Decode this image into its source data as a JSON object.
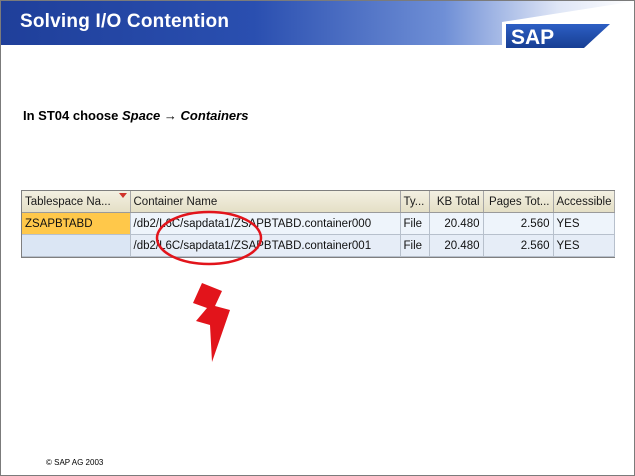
{
  "slide": {
    "title": "Solving I/O Contention",
    "logo_text": "SAP",
    "instruction": {
      "prefix": "In ST04 choose ",
      "menu_path_1": "Space",
      "arrow": "→",
      "menu_path_2": "Containers"
    },
    "copyright": "©  SAP AG 2003"
  },
  "table": {
    "columns": [
      {
        "label": "Tablespace Na..."
      },
      {
        "label": "Container Name"
      },
      {
        "label": "Ty..."
      },
      {
        "label": "KB Total"
      },
      {
        "label": "Pages Tot..."
      },
      {
        "label": "Accessible"
      }
    ],
    "rows": [
      {
        "tablespace": "ZSAPBTABD",
        "container": "/db2/L6C/sapdata1/ZSAPBTABD.container000",
        "type": "File",
        "kb_total": "20.480",
        "pages_total": "2.560",
        "accessible": "YES"
      },
      {
        "tablespace": "",
        "container": "/db2/L6C/sapdata1/ZSAPBTABD.container001",
        "type": "File",
        "kb_total": "20.480",
        "pages_total": "2.560",
        "accessible": "YES"
      }
    ]
  },
  "colors": {
    "header_blue": "#1f3f9a",
    "highlight_cell": "#ffc84a",
    "annotation_red": "#e2141b"
  },
  "annotations": {
    "ellipse": "red-ellipse-around-sapdata1",
    "bolt": "red-lightning-bolt"
  }
}
